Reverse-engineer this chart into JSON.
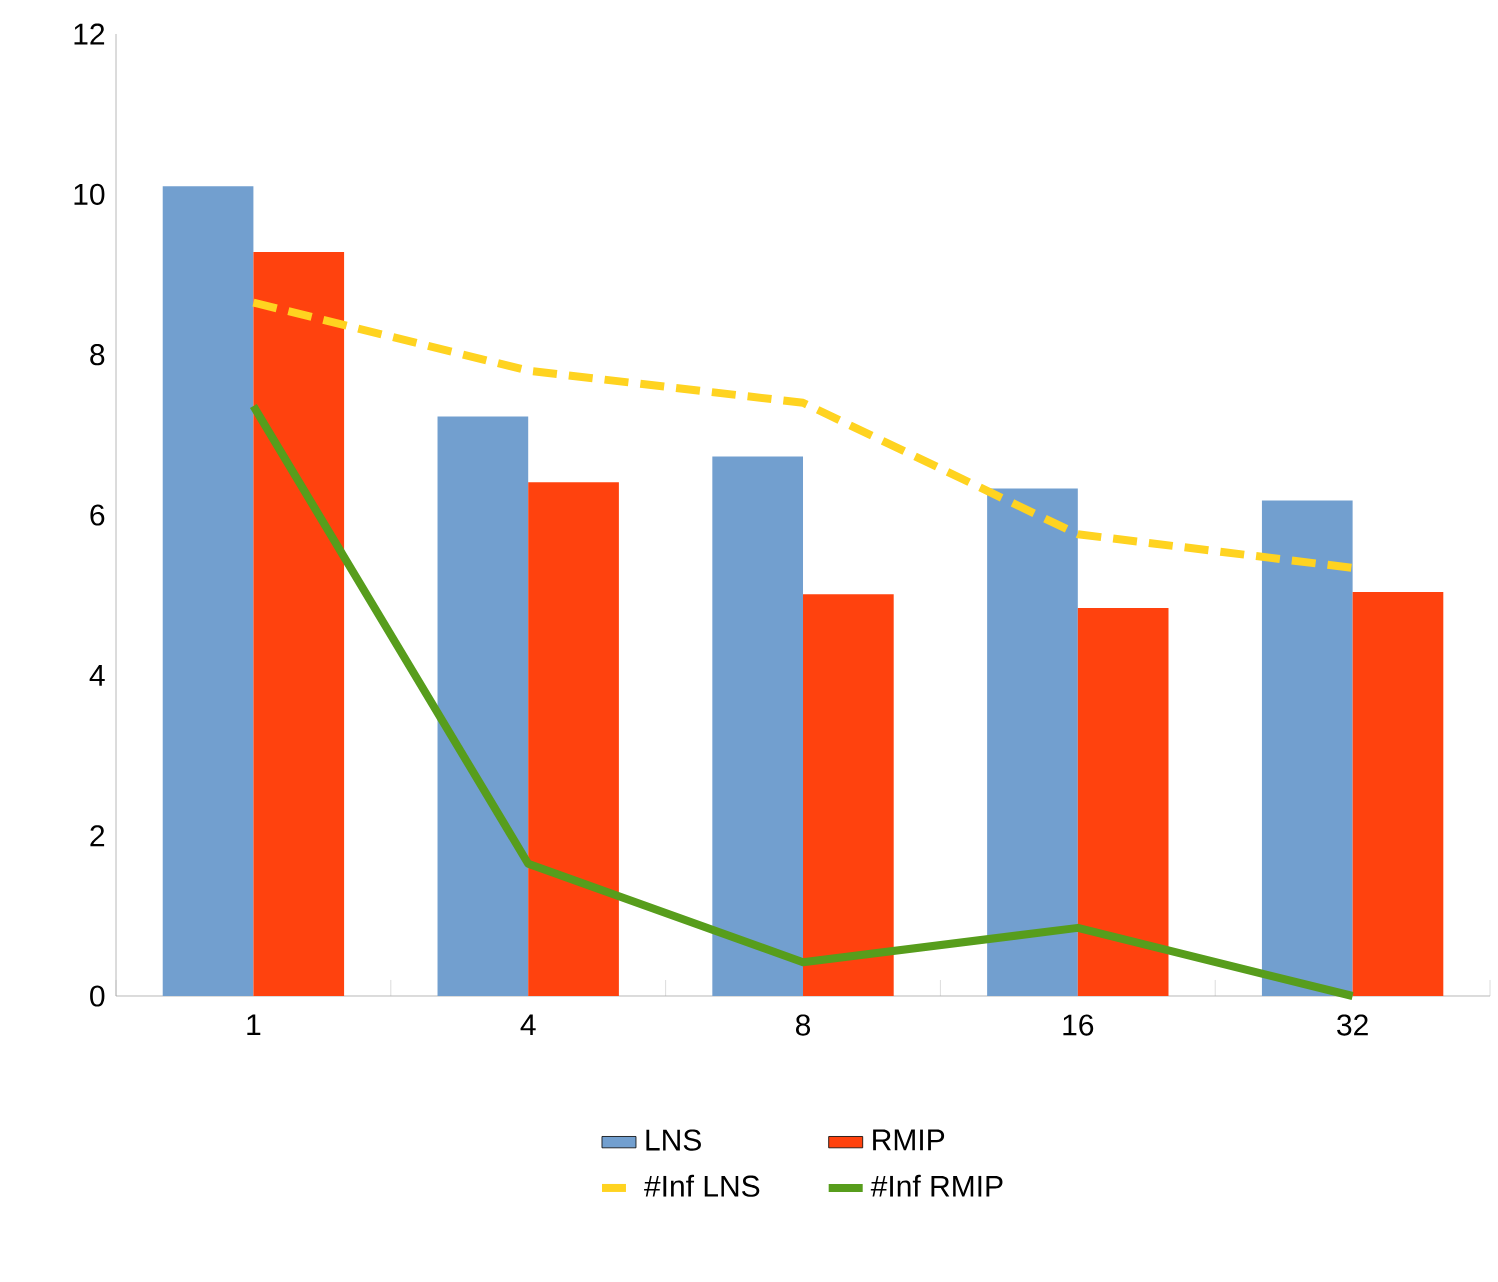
{
  "chart_data": {
    "type": "bar",
    "categories": [
      "1",
      "4",
      "8",
      "16",
      "32"
    ],
    "series": [
      {
        "name": "LNS",
        "color": "#729fcf",
        "values": [
          10.1,
          7.23,
          6.73,
          6.33,
          6.18
        ]
      },
      {
        "name": "RMIP",
        "color": "#ff420e",
        "values": [
          9.28,
          6.41,
          5.01,
          4.84,
          5.04
        ]
      },
      {
        "name": "#Inf LNS",
        "type": "line",
        "color": "#ffd320",
        "line_style": "dashed",
        "values": [
          8.65,
          7.8,
          7.4,
          5.76,
          5.34
        ]
      },
      {
        "name": "#Inf RMIP",
        "type": "line",
        "color": "#579d1c",
        "line_style": "solid",
        "values": [
          7.36,
          1.65,
          0.42,
          0.85,
          0
        ]
      }
    ],
    "ylim": [
      0,
      12
    ],
    "yticks": [
      0,
      2,
      4,
      6,
      8,
      10,
      12
    ],
    "grid": false,
    "legend": "bottom",
    "marker": "none"
  }
}
